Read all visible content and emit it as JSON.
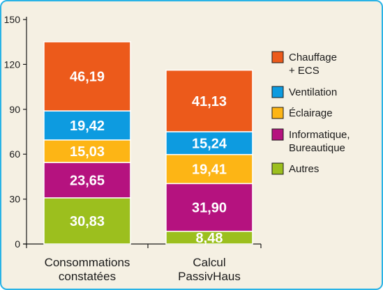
{
  "chart_data": {
    "type": "bar",
    "stacked": true,
    "title": "",
    "xlabel": "",
    "ylabel": "",
    "ylim": [
      0,
      150
    ],
    "yticks": [
      0,
      30,
      60,
      90,
      120,
      150
    ],
    "grid": false,
    "legend_position": "right",
    "categories": [
      [
        "Consommations",
        "constatées"
      ],
      [
        "Calcul",
        "PassivHaus"
      ]
    ],
    "series": [
      {
        "name": "Autres",
        "color": "#9cbf1e",
        "values": [
          30.83,
          8.48
        ],
        "labels": [
          "30,83",
          "8,48"
        ]
      },
      {
        "name": "Informatique, Bureautique",
        "legend_lines": [
          "Informatique,",
          "Bureautique"
        ],
        "color": "#b5127f",
        "values": [
          23.65,
          31.9
        ],
        "labels": [
          "23,65",
          "31,90"
        ]
      },
      {
        "name": "Éclairage",
        "color": "#fdb515",
        "values": [
          15.03,
          19.41
        ],
        "labels": [
          "15,03",
          "19,41"
        ]
      },
      {
        "name": "Ventilation",
        "color": "#0d9be0",
        "values": [
          19.42,
          15.24
        ],
        "labels": [
          "19,42",
          "15,24"
        ]
      },
      {
        "name": "Chauffage + ECS",
        "legend_lines": [
          "Chauffage",
          "+ ECS"
        ],
        "color": "#ec5a1b",
        "values": [
          46.19,
          41.13
        ],
        "labels": [
          "46,19",
          "41,13"
        ]
      }
    ],
    "legend_order": [
      "Chauffage + ECS",
      "Ventilation",
      "Éclairage",
      "Informatique, Bureautique",
      "Autres"
    ]
  }
}
